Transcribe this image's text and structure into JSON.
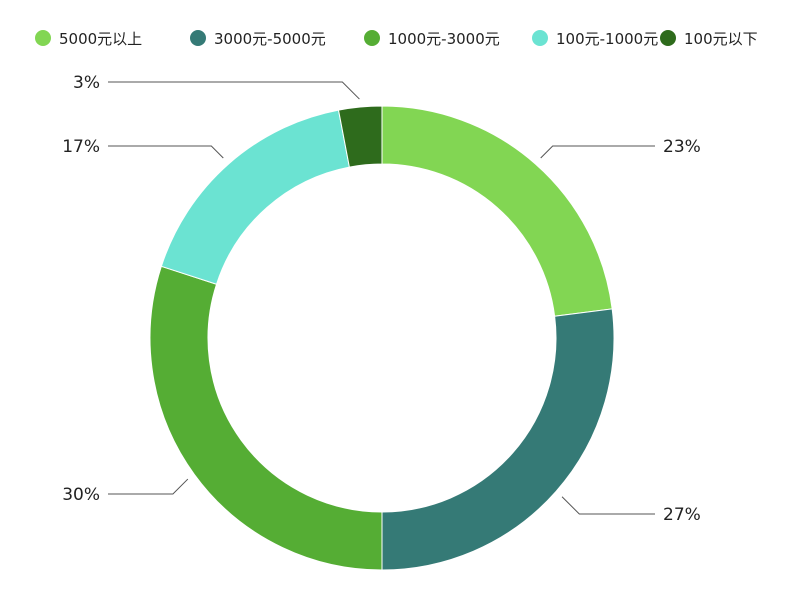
{
  "chart_data": {
    "type": "pie",
    "variant": "donut",
    "legend_position": "top",
    "slices": [
      {
        "label": "5000元以上",
        "value": 23,
        "display": "23%",
        "color": "#82d653"
      },
      {
        "label": "3000元-5000元",
        "value": 27,
        "display": "27%",
        "color": "#357a76"
      },
      {
        "label": "1000元-3000元",
        "value": 30,
        "display": "30%",
        "color": "#55ad34"
      },
      {
        "label": "100元-1000元",
        "value": 17,
        "display": "17%",
        "color": "#6be3d2"
      },
      {
        "label": "100元以下",
        "value": 3,
        "display": "3%",
        "color": "#2e6b1c"
      }
    ]
  }
}
